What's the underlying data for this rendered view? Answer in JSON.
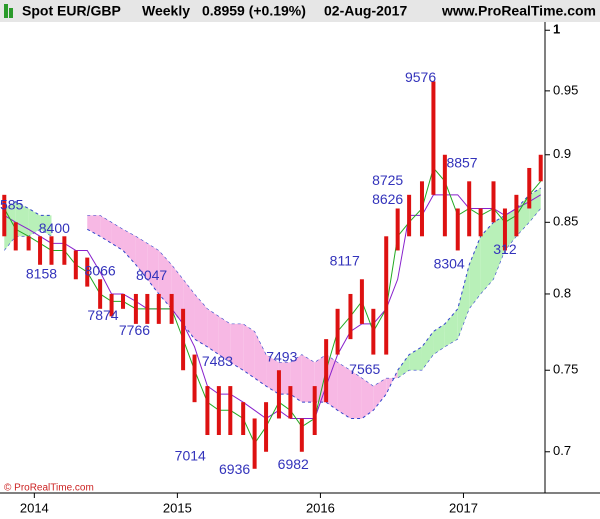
{
  "chart_data": {
    "type": "ichimoku",
    "title": "Spot EUR/GBP",
    "period": "Weekly",
    "last": "0.8959 (+0.19%)",
    "date": "02-Aug-2017",
    "source": "www.ProRealTime.com",
    "watermark": "© ProRealTime.com",
    "log_scale": true,
    "xlim": [
      2013.76,
      2017.57
    ],
    "xticks": [
      2014,
      2015,
      2016,
      2017
    ],
    "ylim": [
      0.676,
      1.007
    ],
    "yticks": [
      1,
      0.95,
      0.9,
      0.85,
      0.8,
      0.75,
      0.7
    ],
    "candle_color": "#dd1111",
    "tenkan_color": "#22aa22",
    "kijun_color": "#8822cc",
    "span_color": "#3344cc",
    "bull_cloud_color": "#b8f0b8",
    "bear_cloud_color": "#f7b8e4",
    "x": [
      2013.79,
      2013.87,
      2013.96,
      2014.04,
      2014.12,
      2014.21,
      2014.29,
      2014.37,
      2014.46,
      2014.54,
      2014.62,
      2014.71,
      2014.79,
      2014.87,
      2014.96,
      2015.04,
      2015.12,
      2015.21,
      2015.29,
      2015.37,
      2015.46,
      2015.54,
      2015.62,
      2015.71,
      2015.79,
      2015.87,
      2015.96,
      2016.04,
      2016.12,
      2016.21,
      2016.29,
      2016.37,
      2016.46,
      2016.54,
      2016.62,
      2016.71,
      2016.79,
      2016.87,
      2016.96,
      2017.04,
      2017.12,
      2017.21,
      2017.29,
      2017.37,
      2017.46,
      2017.54
    ],
    "high": [
      0.87,
      0.85,
      0.84,
      0.84,
      0.84,
      0.84,
      0.83,
      0.825,
      0.81,
      0.8,
      0.8,
      0.8,
      0.8,
      0.8,
      0.8,
      0.79,
      0.76,
      0.74,
      0.74,
      0.74,
      0.73,
      0.72,
      0.73,
      0.75,
      0.74,
      0.72,
      0.74,
      0.77,
      0.79,
      0.8,
      0.81,
      0.79,
      0.84,
      0.86,
      0.87,
      0.88,
      0.9576,
      0.9,
      0.86,
      0.88,
      0.86,
      0.88,
      0.86,
      0.87,
      0.89,
      0.9
    ],
    "low": [
      0.84,
      0.83,
      0.83,
      0.82,
      0.82,
      0.82,
      0.81,
      0.805,
      0.79,
      0.785,
      0.79,
      0.78,
      0.78,
      0.78,
      0.78,
      0.75,
      0.73,
      0.71,
      0.71,
      0.71,
      0.71,
      0.69,
      0.7,
      0.72,
      0.72,
      0.7,
      0.71,
      0.73,
      0.76,
      0.77,
      0.78,
      0.76,
      0.76,
      0.83,
      0.84,
      0.84,
      0.87,
      0.84,
      0.83,
      0.84,
      0.84,
      0.85,
      0.83,
      0.84,
      0.86,
      0.88
    ],
    "tenkan": [
      0.86,
      0.845,
      0.84,
      0.835,
      0.83,
      0.83,
      0.82,
      0.815,
      0.8,
      0.795,
      0.795,
      0.79,
      0.79,
      0.79,
      0.79,
      0.77,
      0.75,
      0.73,
      0.725,
      0.725,
      0.72,
      0.705,
      0.715,
      0.73,
      0.725,
      0.715,
      0.72,
      0.75,
      0.775,
      0.785,
      0.795,
      0.775,
      0.79,
      0.84,
      0.85,
      0.86,
      0.89,
      0.88,
      0.855,
      0.86,
      0.855,
      0.86,
      0.85,
      0.855,
      0.87,
      0.88
    ],
    "kijun": [
      0.855,
      0.85,
      0.845,
      0.84,
      0.835,
      0.835,
      0.83,
      0.83,
      0.815,
      0.8,
      0.8,
      0.795,
      0.79,
      0.79,
      0.79,
      0.78,
      0.765,
      0.74,
      0.735,
      0.735,
      0.73,
      0.725,
      0.72,
      0.725,
      0.72,
      0.72,
      0.72,
      0.74,
      0.76,
      0.775,
      0.78,
      0.78,
      0.79,
      0.81,
      0.855,
      0.855,
      0.87,
      0.87,
      0.87,
      0.86,
      0.86,
      0.86,
      0.855,
      0.86,
      0.865,
      0.87
    ],
    "span_a": [
      0.86,
      0.865,
      0.86,
      0.855,
      0.855,
      null,
      null,
      0.845,
      0.84,
      0.835,
      0.83,
      0.82,
      0.81,
      0.8,
      0.79,
      0.78,
      0.77,
      0.765,
      0.76,
      0.755,
      0.75,
      0.745,
      0.74,
      0.735,
      0.735,
      0.73,
      0.73,
      0.73,
      0.725,
      0.72,
      0.72,
      0.725,
      0.735,
      0.75,
      0.76,
      0.765,
      0.775,
      0.78,
      0.79,
      0.82,
      0.84,
      0.85,
      0.855,
      0.86,
      0.87,
      0.875
    ],
    "span_b": [
      0.83,
      0.84,
      0.84,
      0.845,
      0.84,
      null,
      null,
      0.855,
      0.855,
      0.85,
      0.845,
      0.84,
      0.835,
      0.83,
      0.82,
      0.81,
      0.8,
      0.79,
      0.785,
      0.78,
      0.78,
      0.775,
      0.76,
      0.755,
      0.755,
      0.76,
      0.755,
      0.76,
      0.755,
      0.75,
      0.745,
      0.74,
      0.745,
      0.745,
      0.75,
      0.75,
      0.76,
      0.765,
      0.77,
      0.79,
      0.8,
      0.81,
      0.83,
      0.84,
      0.85,
      0.86
    ],
    "label_color": "#3333bb",
    "annotations": [
      {
        "text": "585",
        "x": 2013.84,
        "y": 0.862
      },
      {
        "text": "8400",
        "x": 2014.14,
        "y": 0.845
      },
      {
        "text": "8158",
        "x": 2014.05,
        "y": 0.813
      },
      {
        "text": "8066",
        "x": 2014.46,
        "y": 0.815
      },
      {
        "text": "8047",
        "x": 2014.82,
        "y": 0.812
      },
      {
        "text": "7874",
        "x": 2014.48,
        "y": 0.785
      },
      {
        "text": "7766",
        "x": 2014.7,
        "y": 0.775
      },
      {
        "text": "7483",
        "x": 2015.28,
        "y": 0.755
      },
      {
        "text": "7014",
        "x": 2015.09,
        "y": 0.697
      },
      {
        "text": "6936",
        "x": 2015.4,
        "y": 0.689
      },
      {
        "text": "7493",
        "x": 2015.73,
        "y": 0.758
      },
      {
        "text": "6982",
        "x": 2015.81,
        "y": 0.692
      },
      {
        "text": "8117",
        "x": 2016.17,
        "y": 0.822
      },
      {
        "text": "7565",
        "x": 2016.31,
        "y": 0.75
      },
      {
        "text": "8626",
        "x": 2016.47,
        "y": 0.866
      },
      {
        "text": "8725",
        "x": 2016.47,
        "y": 0.88
      },
      {
        "text": "9576",
        "x": 2016.7,
        "y": 0.96
      },
      {
        "text": "8857",
        "x": 2016.99,
        "y": 0.893
      },
      {
        "text": "8304",
        "x": 2016.9,
        "y": 0.82
      },
      {
        "text": "312",
        "x": 2017.29,
        "y": 0.83
      }
    ]
  }
}
